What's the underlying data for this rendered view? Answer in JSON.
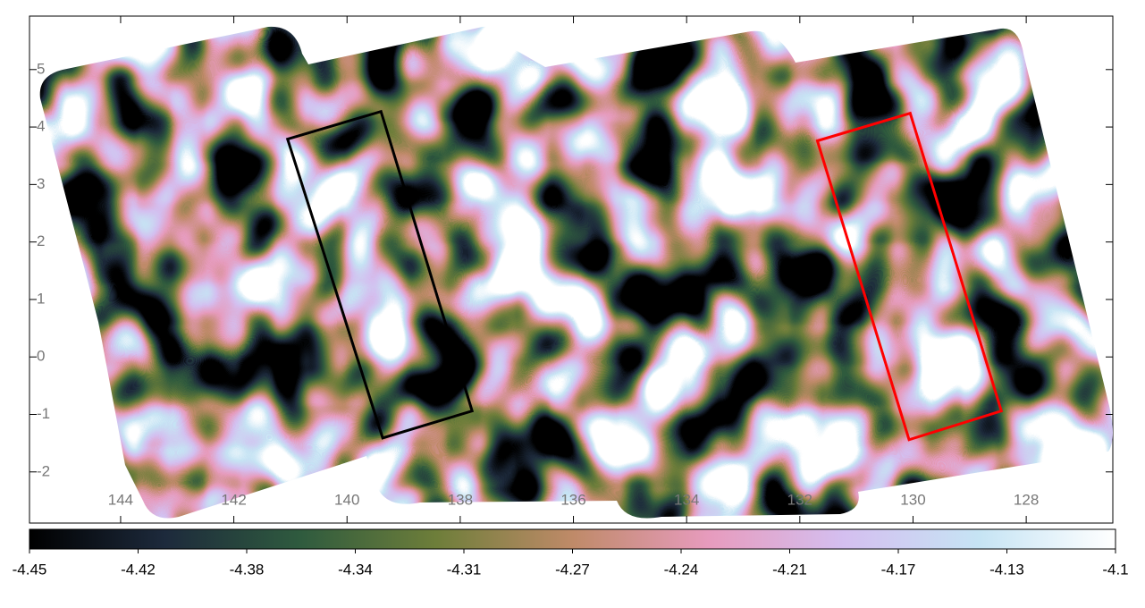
{
  "chart_data": {
    "type": "image",
    "xlim": [
      145.61,
      126.47
    ],
    "ylim": [
      -2.89,
      5.93
    ],
    "xticks": [
      144,
      142,
      140,
      138,
      136,
      134,
      132,
      130,
      128
    ],
    "yticks": [
      -2,
      -1,
      0,
      1,
      2,
      3,
      4,
      5
    ],
    "regions": [
      {
        "color": "#000000",
        "x": [
          141.05,
          139.4,
          137.79,
          139.37
        ],
        "y": [
          3.79,
          4.27,
          -0.94,
          -1.41
        ]
      },
      {
        "color": "#ff0000",
        "x": [
          131.69,
          130.05,
          128.44,
          130.07
        ],
        "y": [
          3.76,
          4.24,
          -0.94,
          -1.44
        ]
      }
    ],
    "colorbar": {
      "lim": [
        -4.45,
        -4.1
      ],
      "ticks": [
        -4.45,
        {
          "value": -4.415,
          "label": "-4.42"
        },
        -4.38,
        {
          "value": -4.345,
          "label": "-4.34"
        },
        -4.31,
        {
          "value": -4.275,
          "label": "-4.27"
        },
        -4.24,
        {
          "value": -4.205,
          "label": "-4.21"
        },
        -4.17,
        {
          "value": -4.135,
          "label": "-4.13"
        },
        -4.1
      ],
      "colormap": [
        "#000000",
        "#1d2a3c",
        "#2f5b3e",
        "#6e7e3a",
        "#bf8a68",
        "#e79bbd",
        "#d4bff0",
        "#c6e4f4",
        "#ffffff"
      ]
    }
  }
}
